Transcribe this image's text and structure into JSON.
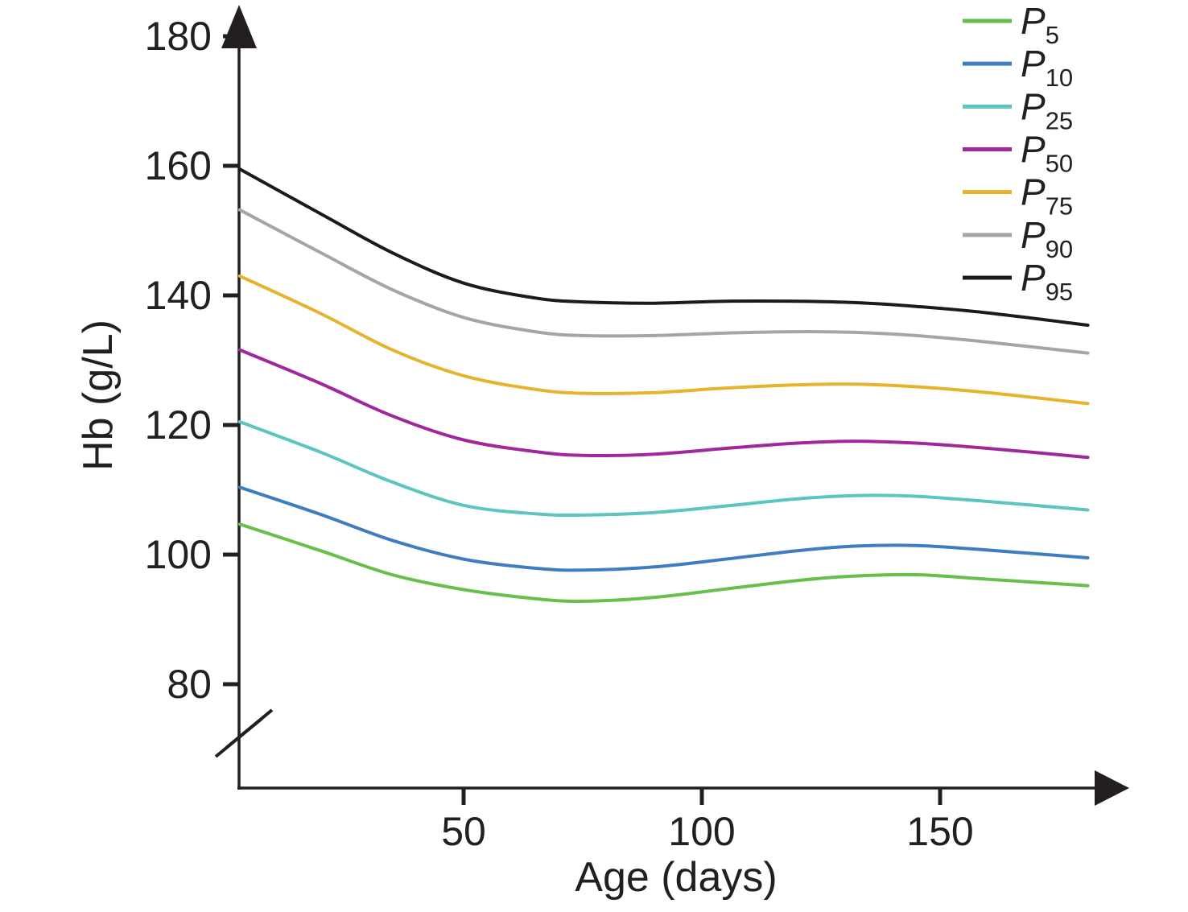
{
  "figure": {
    "background": "#ffffff",
    "text_color": "#231f20",
    "axis_color": "#231f20"
  },
  "chart_data": {
    "type": "line",
    "title": "",
    "xlabel": "Age (days)",
    "ylabel": "Hb (g/L)",
    "x_unit": "days",
    "y_unit": "g/L",
    "xlim": [
      0,
      190
    ],
    "ylim_displayed": [
      80,
      180
    ],
    "x_ticks": [
      50,
      100,
      150
    ],
    "y_ticks": [
      180,
      160,
      140,
      120,
      100,
      80
    ],
    "y_axis_break": true,
    "grid": false,
    "legend_position": "top-right",
    "series": [
      {
        "name": "P5",
        "label_base": "P",
        "label_sub": "5",
        "color": "#67bf4c",
        "points": [
          [
            3,
            104.7
          ],
          [
            20,
            100.6
          ],
          [
            35,
            96.9
          ],
          [
            50,
            94.6
          ],
          [
            65,
            93.2
          ],
          [
            75,
            92.8
          ],
          [
            90,
            93.4
          ],
          [
            105,
            94.7
          ],
          [
            120,
            96.0
          ],
          [
            132,
            96.7
          ],
          [
            145,
            96.9
          ],
          [
            160,
            96.2
          ],
          [
            181,
            95.2
          ]
        ]
      },
      {
        "name": "P10",
        "label_base": "P",
        "label_sub": "10",
        "color": "#3d7dc0",
        "points": [
          [
            3,
            110.4
          ],
          [
            20,
            106.2
          ],
          [
            35,
            102.2
          ],
          [
            50,
            99.3
          ],
          [
            65,
            97.9
          ],
          [
            75,
            97.6
          ],
          [
            90,
            98.1
          ],
          [
            105,
            99.3
          ],
          [
            120,
            100.6
          ],
          [
            132,
            101.3
          ],
          [
            145,
            101.4
          ],
          [
            160,
            100.7
          ],
          [
            181,
            99.5
          ]
        ]
      },
      {
        "name": "P25",
        "label_base": "P",
        "label_sub": "25",
        "color": "#5cc5bd",
        "points": [
          [
            3,
            120.5
          ],
          [
            20,
            115.8
          ],
          [
            35,
            111.2
          ],
          [
            50,
            107.6
          ],
          [
            65,
            106.3
          ],
          [
            75,
            106.1
          ],
          [
            90,
            106.5
          ],
          [
            105,
            107.5
          ],
          [
            120,
            108.6
          ],
          [
            132,
            109.1
          ],
          [
            145,
            109.0
          ],
          [
            160,
            108.2
          ],
          [
            181,
            106.9
          ]
        ]
      },
      {
        "name": "P50",
        "label_base": "P",
        "label_sub": "50",
        "color": "#a0279c",
        "points": [
          [
            3,
            131.6
          ],
          [
            20,
            126.4
          ],
          [
            35,
            121.4
          ],
          [
            50,
            117.7
          ],
          [
            65,
            115.9
          ],
          [
            75,
            115.3
          ],
          [
            90,
            115.5
          ],
          [
            105,
            116.4
          ],
          [
            120,
            117.2
          ],
          [
            132,
            117.5
          ],
          [
            145,
            117.2
          ],
          [
            160,
            116.4
          ],
          [
            181,
            115.0
          ]
        ]
      },
      {
        "name": "P75",
        "label_base": "P",
        "label_sub": "75",
        "color": "#e6b32c",
        "points": [
          [
            3,
            143.0
          ],
          [
            20,
            137.2
          ],
          [
            35,
            131.6
          ],
          [
            50,
            127.6
          ],
          [
            65,
            125.5
          ],
          [
            75,
            124.9
          ],
          [
            90,
            125.0
          ],
          [
            105,
            125.7
          ],
          [
            120,
            126.2
          ],
          [
            132,
            126.3
          ],
          [
            145,
            125.9
          ],
          [
            160,
            125.0
          ],
          [
            181,
            123.3
          ]
        ]
      },
      {
        "name": "P90",
        "label_base": "P",
        "label_sub": "90",
        "color": "#a4a5a8",
        "points": [
          [
            3,
            153.2
          ],
          [
            20,
            146.6
          ],
          [
            35,
            140.9
          ],
          [
            50,
            136.6
          ],
          [
            65,
            134.4
          ],
          [
            75,
            133.8
          ],
          [
            90,
            133.8
          ],
          [
            105,
            134.2
          ],
          [
            120,
            134.4
          ],
          [
            132,
            134.3
          ],
          [
            145,
            133.8
          ],
          [
            160,
            132.8
          ],
          [
            181,
            131.1
          ]
        ]
      },
      {
        "name": "P95",
        "label_base": "P",
        "label_sub": "95",
        "color": "#1b1b1b",
        "points": [
          [
            3,
            159.5
          ],
          [
            20,
            152.6
          ],
          [
            35,
            146.6
          ],
          [
            50,
            141.9
          ],
          [
            65,
            139.6
          ],
          [
            75,
            139.0
          ],
          [
            90,
            138.8
          ],
          [
            105,
            139.1
          ],
          [
            120,
            139.1
          ],
          [
            132,
            138.9
          ],
          [
            145,
            138.3
          ],
          [
            160,
            137.3
          ],
          [
            181,
            135.4
          ]
        ]
      }
    ]
  }
}
